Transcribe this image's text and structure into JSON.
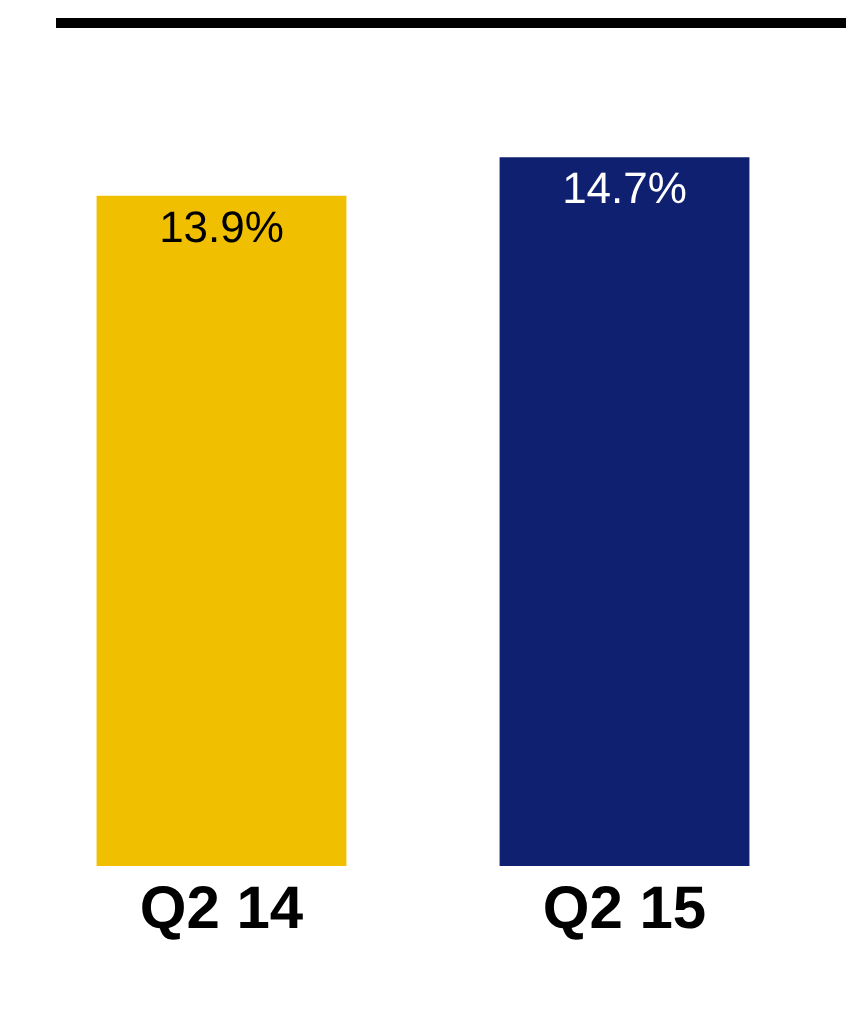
{
  "chart_data": {
    "type": "bar",
    "categories": [
      "Q2 14",
      "Q2 15"
    ],
    "values": [
      13.9,
      14.7
    ],
    "colors": [
      "#f0c000",
      "#0f2070"
    ],
    "value_labels": [
      "13.9%",
      "14.7%"
    ],
    "tick_labels": "x"
  }
}
